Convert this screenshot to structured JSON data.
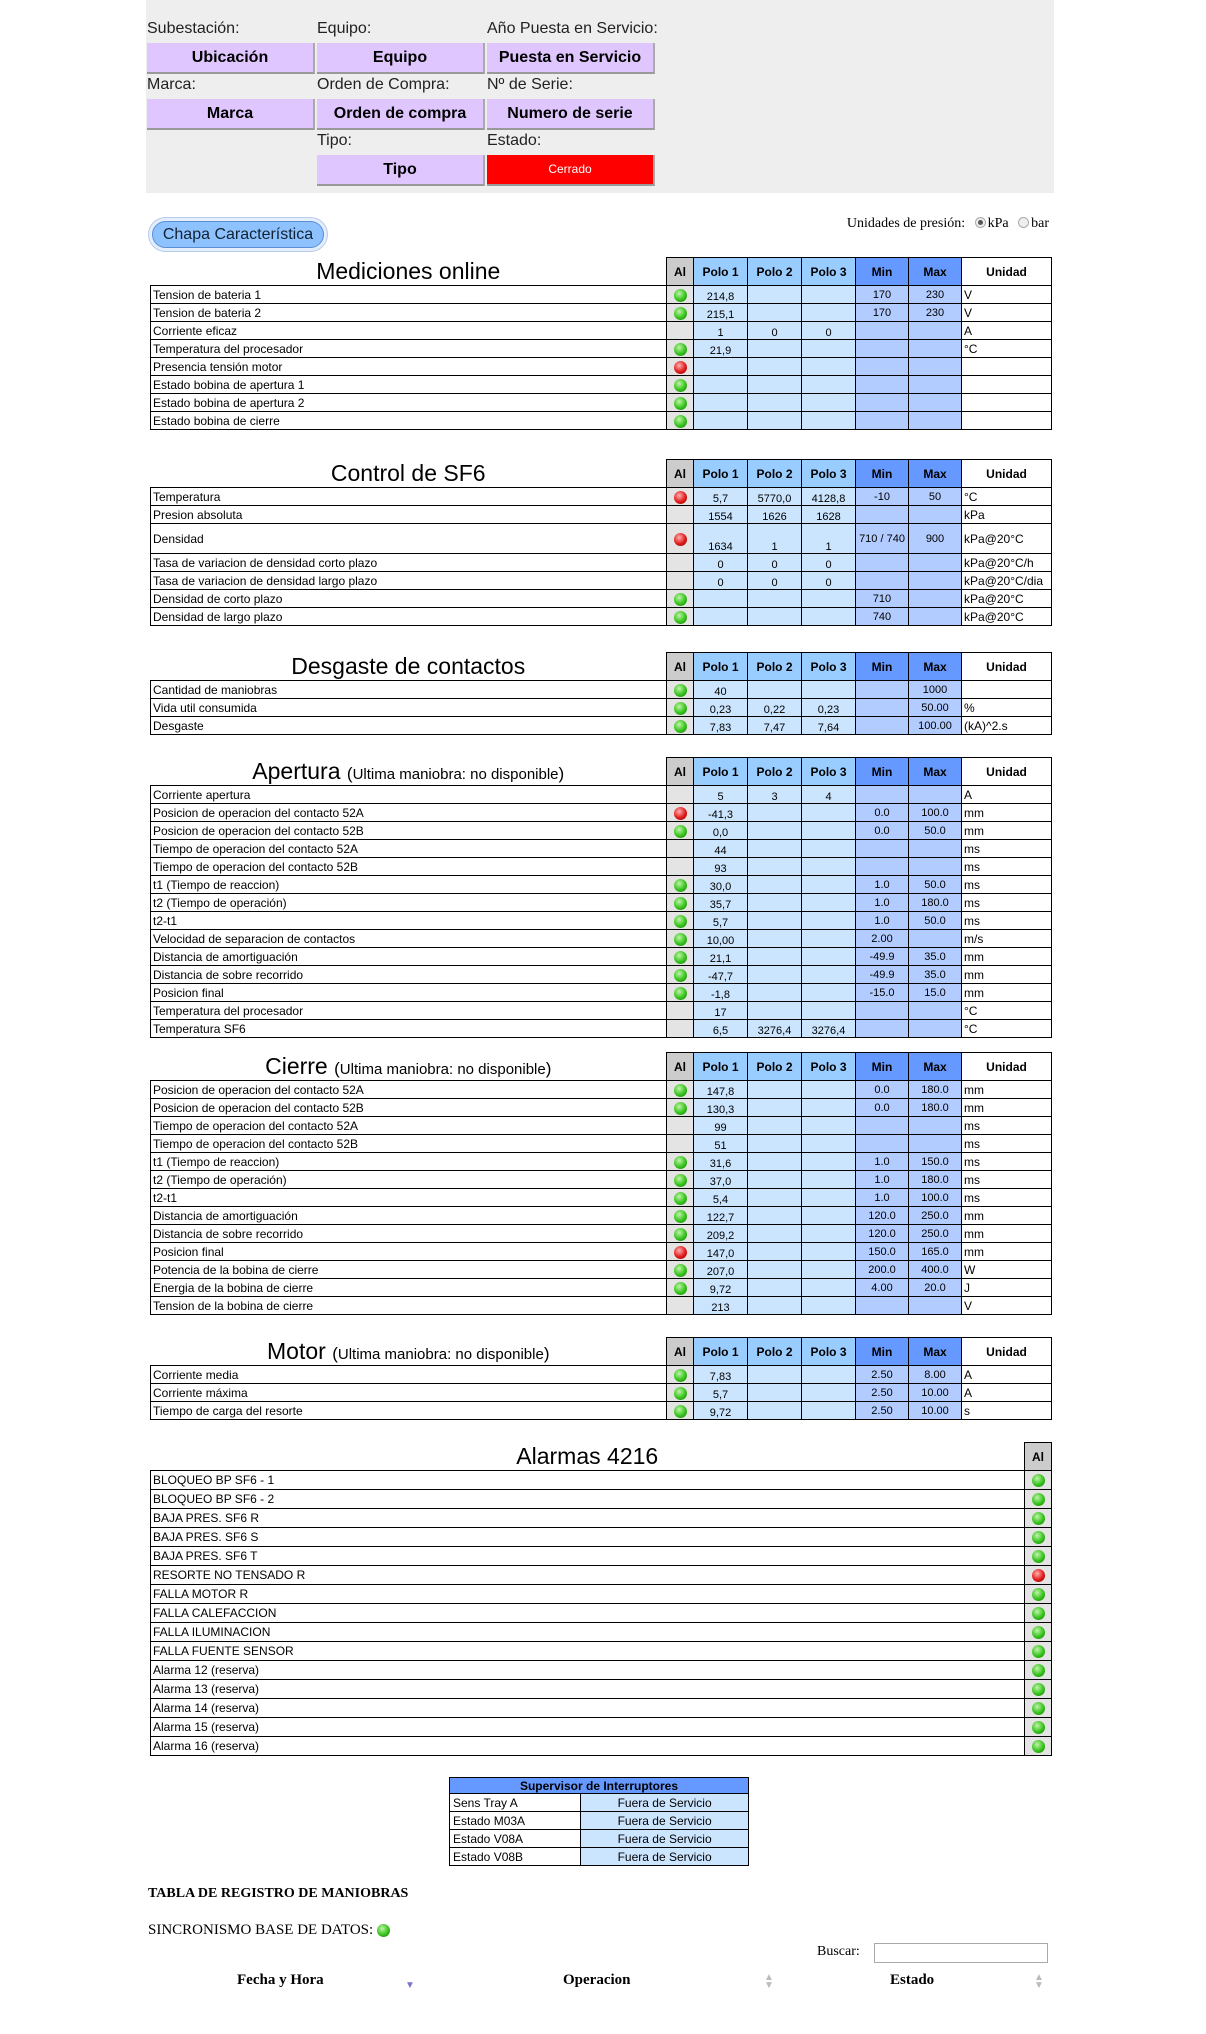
{
  "header": {
    "fields": [
      {
        "label": "Subestación:",
        "value": "Ubicación"
      },
      {
        "label": "Equipo:",
        "value": "Equipo"
      },
      {
        "label": "Año Puesta en Servicio:",
        "value": "Puesta en Servicio"
      },
      {
        "label": "Marca:",
        "value": "Marca"
      },
      {
        "label": "Orden de Compra:",
        "value": "Orden de compra"
      },
      {
        "label": "Nº de Serie:",
        "value": "Numero de serie"
      },
      {
        "label": "Tipo:",
        "value": "Tipo"
      },
      {
        "label": "Estado:",
        "value": "Cerrado",
        "color": "#ff0000"
      }
    ]
  },
  "chapa_button": "Chapa Característica",
  "units": {
    "label": "Unidades de presión:",
    "options": [
      "kPa",
      "bar"
    ],
    "selected": "kPa"
  },
  "columns": {
    "al": "Al",
    "p1": "Polo 1",
    "p2": "Polo 2",
    "p3": "Polo 3",
    "min": "Min",
    "max": "Max",
    "unit": "Unidad"
  },
  "tables": [
    {
      "title": "Mediciones online",
      "subtitle": "",
      "rows": [
        [
          "Tension de bateria 1",
          "green",
          "214,8",
          "",
          "",
          "170",
          "230",
          "V"
        ],
        [
          "Tension de bateria 2",
          "green",
          "215,1",
          "",
          "",
          "170",
          "230",
          "V"
        ],
        [
          "Corriente eficaz",
          "",
          "1",
          "0",
          "0",
          "",
          "",
          "A"
        ],
        [
          "Temperatura del procesador",
          "green",
          "21,9",
          "",
          "",
          "",
          "",
          "°C"
        ],
        [
          "Presencia tensión motor",
          "red",
          "",
          "",
          "",
          "",
          "",
          ""
        ],
        [
          "Estado bobina de apertura 1",
          "green",
          "",
          "",
          "",
          "",
          "",
          ""
        ],
        [
          "Estado bobina de apertura 2",
          "green",
          "",
          "",
          "",
          "",
          "",
          ""
        ],
        [
          "Estado bobina de cierre",
          "green",
          "",
          "",
          "",
          "",
          "",
          ""
        ]
      ]
    },
    {
      "title": "Control de SF6",
      "subtitle": "",
      "rows": [
        [
          "Temperatura",
          "red",
          "5,7",
          "5770,0",
          "4128,8",
          "-10",
          "50",
          "°C"
        ],
        [
          "Presion absoluta",
          "",
          "1554",
          "1626",
          "1628",
          "",
          "",
          "kPa"
        ],
        [
          "Densidad",
          "red",
          "1634",
          "1",
          "1",
          "710 / 740",
          "900",
          "kPa@20°C"
        ],
        [
          "Tasa de variacion de densidad corto plazo",
          "",
          "0",
          "0",
          "0",
          "",
          "",
          "kPa@20°C/h"
        ],
        [
          "Tasa de variacion de densidad largo plazo",
          "",
          "0",
          "0",
          "0",
          "",
          "",
          "kPa@20°C/dia"
        ],
        [
          "Densidad de corto plazo",
          "green",
          "",
          "",
          "",
          "710",
          "",
          "kPa@20°C"
        ],
        [
          "Densidad de largo plazo",
          "green",
          "",
          "",
          "",
          "740",
          "",
          "kPa@20°C"
        ]
      ]
    },
    {
      "title": "Desgaste de contactos",
      "subtitle": "",
      "rows": [
        [
          "Cantidad de maniobras",
          "green",
          "40",
          "",
          "",
          "",
          "1000",
          ""
        ],
        [
          "Vida util consumida",
          "green",
          "0,23",
          "0,22",
          "0,23",
          "",
          "50.00",
          "%"
        ],
        [
          "Desgaste",
          "green",
          "7,83",
          "7,47",
          "7,64",
          "",
          "100.00",
          "(kA)^2.s"
        ]
      ]
    },
    {
      "title": "Apertura",
      "subtitle": "Ultima maniobra: no disponible",
      "rows": [
        [
          "Corriente apertura",
          "",
          "5",
          "3",
          "4",
          "",
          "",
          "A"
        ],
        [
          "Posicion de operacion del contacto 52A",
          "red",
          "-41,3",
          "",
          "",
          "0.0",
          "100.0",
          "mm"
        ],
        [
          "Posicion de operacion del contacto 52B",
          "green",
          "0,0",
          "",
          "",
          "0.0",
          "50.0",
          "mm"
        ],
        [
          "Tiempo de operacion del contacto 52A",
          "",
          "44",
          "",
          "",
          "",
          "",
          "ms"
        ],
        [
          "Tiempo de operacion del contacto 52B",
          "",
          "93",
          "",
          "",
          "",
          "",
          "ms"
        ],
        [
          "t1 (Tiempo de reaccion)",
          "green",
          "30,0",
          "",
          "",
          "1.0",
          "50.0",
          "ms"
        ],
        [
          "t2 (Tiempo de operación)",
          "green",
          "35,7",
          "",
          "",
          "1.0",
          "180.0",
          "ms"
        ],
        [
          "t2-t1",
          "green",
          "5,7",
          "",
          "",
          "1.0",
          "50.0",
          "ms"
        ],
        [
          "Velocidad de separacion de contactos",
          "green",
          "10,00",
          "",
          "",
          "2.00",
          "",
          "m/s"
        ],
        [
          "Distancia de amortiguación",
          "green",
          "21,1",
          "",
          "",
          "-49.9",
          "35.0",
          "mm"
        ],
        [
          "Distancia de sobre recorrido",
          "green",
          "-47,7",
          "",
          "",
          "-49.9",
          "35.0",
          "mm"
        ],
        [
          "Posicion final",
          "green",
          "-1,8",
          "",
          "",
          "-15.0",
          "15.0",
          "mm"
        ],
        [
          "Temperatura del procesador",
          "",
          "17",
          "",
          "",
          "",
          "",
          "°C"
        ],
        [
          "Temperatura SF6",
          "",
          "6,5",
          "3276,4",
          "3276,4",
          "",
          "",
          "°C"
        ]
      ]
    },
    {
      "title": "Cierre",
      "subtitle": "Ultima maniobra: no disponible",
      "rows": [
        [
          "Posicion de operacion del contacto 52A",
          "green",
          "147,8",
          "",
          "",
          "0.0",
          "180.0",
          "mm"
        ],
        [
          "Posicion de operacion del contacto 52B",
          "green",
          "130,3",
          "",
          "",
          "0.0",
          "180.0",
          "mm"
        ],
        [
          "Tiempo de operacion del contacto 52A",
          "",
          "99",
          "",
          "",
          "",
          "",
          "ms"
        ],
        [
          "Tiempo de operacion del contacto 52B",
          "",
          "51",
          "",
          "",
          "",
          "",
          "ms"
        ],
        [
          "t1 (Tiempo de reaccion)",
          "green",
          "31,6",
          "",
          "",
          "1.0",
          "150.0",
          "ms"
        ],
        [
          "t2 (Tiempo de operación)",
          "green",
          "37,0",
          "",
          "",
          "1.0",
          "180.0",
          "ms"
        ],
        [
          "t2-t1",
          "green",
          "5,4",
          "",
          "",
          "1.0",
          "100.0",
          "ms"
        ],
        [
          "Distancia de amortiguación",
          "green",
          "122,7",
          "",
          "",
          "120.0",
          "250.0",
          "mm"
        ],
        [
          "Distancia de sobre recorrido",
          "green",
          "209,2",
          "",
          "",
          "120.0",
          "250.0",
          "mm"
        ],
        [
          "Posicion final",
          "red",
          "147,0",
          "",
          "",
          "150.0",
          "165.0",
          "mm"
        ],
        [
          "Potencia de la bobina de cierre",
          "green",
          "207,0",
          "",
          "",
          "200.0",
          "400.0",
          "W"
        ],
        [
          "Energia de la bobina de cierre",
          "green",
          "9,72",
          "",
          "",
          "4.00",
          "20.0",
          "J"
        ],
        [
          "Tension de la bobina de cierre",
          "",
          "213",
          "",
          "",
          "",
          "",
          "V"
        ]
      ]
    },
    {
      "title": "Motor",
      "subtitle": "Ultima maniobra: no disponible",
      "rows": [
        [
          "Corriente media",
          "green",
          "7,83",
          "",
          "",
          "2.50",
          "8.00",
          "A"
        ],
        [
          "Corriente máxima",
          "green",
          "5,7",
          "",
          "",
          "2.50",
          "10.00",
          "A"
        ],
        [
          "Tiempo de carga del resorte",
          "green",
          "9,72",
          "",
          "",
          "2.50",
          "10.00",
          "s"
        ]
      ]
    }
  ],
  "alarms": {
    "title": "Alarmas 4216",
    "al": "Al",
    "rows": [
      [
        "BLOQUEO BP SF6 - 1",
        "green"
      ],
      [
        "BLOQUEO BP SF6 - 2",
        "green"
      ],
      [
        "BAJA PRES. SF6 R",
        "green"
      ],
      [
        "BAJA PRES. SF6 S",
        "green"
      ],
      [
        "BAJA PRES. SF6 T",
        "green"
      ],
      [
        "RESORTE NO TENSADO R",
        "red"
      ],
      [
        "FALLA MOTOR R",
        "green"
      ],
      [
        "FALLA CALEFACCION",
        "green"
      ],
      [
        "FALLA ILUMINACION",
        "green"
      ],
      [
        "FALLA FUENTE SENSOR",
        "green"
      ],
      [
        "Alarma 12 (reserva)",
        "green"
      ],
      [
        "Alarma 13 (reserva)",
        "green"
      ],
      [
        "Alarma 14 (reserva)",
        "green"
      ],
      [
        "Alarma 15 (reserva)",
        "green"
      ],
      [
        "Alarma 16 (reserva)",
        "green"
      ]
    ]
  },
  "supervisor": {
    "title": "Supervisor de Interruptores",
    "rows": [
      [
        "Sens Tray A",
        "Fuera de Servicio"
      ],
      [
        "Estado M03A",
        "Fuera de Servicio"
      ],
      [
        "Estado V08A",
        "Fuera de Servicio"
      ],
      [
        "Estado V08B",
        "Fuera de Servicio"
      ]
    ]
  },
  "registro": {
    "title": "TABLA DE REGISTRO DE MANIOBRAS",
    "sync_label": "SINCRONISMO BASE DE DATOS:",
    "sync_status": "green",
    "search_label": "Buscar:",
    "search_value": "",
    "columns": [
      "Fecha y Hora",
      "Operacion",
      "Estado"
    ]
  }
}
